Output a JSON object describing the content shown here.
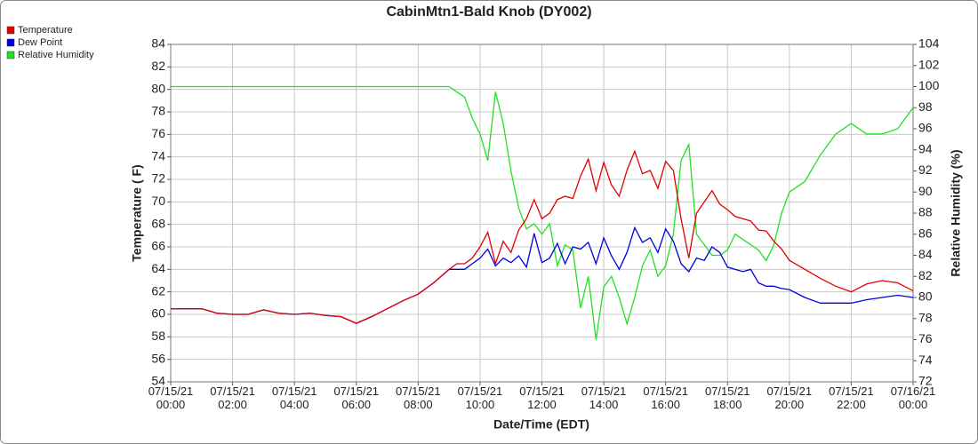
{
  "chart_data": {
    "type": "line",
    "title": "CabinMtn1-Bald Knob (DY002)",
    "x_label": "Date/Time (EDT)",
    "y_label": "Temperature ( F)",
    "y2_label": "Relative Humidity (%)",
    "legend": "top-left",
    "grid": true,
    "xlim": [
      0,
      24
    ],
    "xticks": [
      {
        "value": 0,
        "label": "07/15/21 00:00"
      },
      {
        "value": 2,
        "label": "07/15/21 02:00"
      },
      {
        "value": 4,
        "label": "07/15/21 04:00"
      },
      {
        "value": 6,
        "label": "07/15/21 06:00"
      },
      {
        "value": 8,
        "label": "07/15/21 08:00"
      },
      {
        "value": 10,
        "label": "07/15/21 10:00"
      },
      {
        "value": 12,
        "label": "07/15/21 12:00"
      },
      {
        "value": 14,
        "label": "07/15/21 14:00"
      },
      {
        "value": 16,
        "label": "07/15/21 16:00"
      },
      {
        "value": 18,
        "label": "07/15/21 18:00"
      },
      {
        "value": 20,
        "label": "07/15/21 20:00"
      },
      {
        "value": 22,
        "label": "07/15/21 22:00"
      },
      {
        "value": 24,
        "label": "07/16/21 00:00"
      }
    ],
    "ylim": [
      54,
      84
    ],
    "yticks": [
      54,
      56,
      58,
      60,
      62,
      64,
      66,
      68,
      70,
      72,
      74,
      76,
      78,
      80,
      82,
      84
    ],
    "y2lim": [
      72,
      104
    ],
    "y2ticks": [
      72,
      74,
      76,
      78,
      80,
      82,
      84,
      86,
      88,
      90,
      92,
      94,
      96,
      98,
      100,
      102,
      104
    ],
    "x": [
      0,
      0.5,
      1,
      1.5,
      2,
      2.5,
      3,
      3.5,
      4,
      4.5,
      5,
      5.5,
      6,
      6.5,
      7,
      7.5,
      8,
      8.5,
      9,
      9.25,
      9.5,
      9.75,
      10,
      10.25,
      10.5,
      10.75,
      11,
      11.25,
      11.5,
      11.75,
      12,
      12.25,
      12.5,
      12.75,
      13,
      13.25,
      13.5,
      13.75,
      14,
      14.25,
      14.5,
      14.75,
      15,
      15.25,
      15.5,
      15.75,
      16,
      16.25,
      16.5,
      16.75,
      17,
      17.25,
      17.5,
      17.75,
      18,
      18.25,
      18.5,
      18.75,
      19,
      19.25,
      19.5,
      19.75,
      20,
      20.5,
      21,
      21.5,
      22,
      22.5,
      23,
      23.5,
      24
    ],
    "series": [
      {
        "name": "Temperature",
        "color": "#e00000",
        "values": [
          60.5,
          60.5,
          60.5,
          60.1,
          60.0,
          60.0,
          60.4,
          60.1,
          60.0,
          60.1,
          59.9,
          59.8,
          59.2,
          59.8,
          60.5,
          61.2,
          61.8,
          62.8,
          64.0,
          64.5,
          64.5,
          65.0,
          66.0,
          67.3,
          64.5,
          66.5,
          65.5,
          67.5,
          68.5,
          70.2,
          68.5,
          69.0,
          70.2,
          70.5,
          70.3,
          72.3,
          73.8,
          71.0,
          73.5,
          71.5,
          70.5,
          72.8,
          74.5,
          72.5,
          72.8,
          71.2,
          73.6,
          72.8,
          68.5,
          65.0,
          69.0,
          70.0,
          71.0,
          69.8,
          69.3,
          68.7,
          68.5,
          68.3,
          67.5,
          67.4,
          66.5,
          65.8,
          64.8,
          64.0,
          63.2,
          62.5,
          62.0,
          62.7,
          63.0,
          62.8,
          62.1
        ]
      },
      {
        "name": "Dew Point",
        "color": "#0000e0",
        "values": [
          60.5,
          60.5,
          60.5,
          60.1,
          60.0,
          60.0,
          60.4,
          60.1,
          60.0,
          60.1,
          59.9,
          59.8,
          59.2,
          59.8,
          60.5,
          61.2,
          61.8,
          62.8,
          64.0,
          64.0,
          64.0,
          64.5,
          65.0,
          65.8,
          64.3,
          65.0,
          64.6,
          65.2,
          64.2,
          67.2,
          64.6,
          65.0,
          66.3,
          64.5,
          66.0,
          65.8,
          66.4,
          64.5,
          66.8,
          65.2,
          64.0,
          65.5,
          67.7,
          66.4,
          66.8,
          65.5,
          67.6,
          66.5,
          64.5,
          63.8,
          65.0,
          64.8,
          66.0,
          65.5,
          64.2,
          64.0,
          63.8,
          64.0,
          62.8,
          62.5,
          62.5,
          62.3,
          62.2,
          61.5,
          61.0,
          61.0,
          61.0,
          61.3,
          61.5,
          61.7,
          61.5
        ]
      },
      {
        "name": "Relative Humidity",
        "color": "#22e022",
        "axis": "y2",
        "values": [
          100,
          100,
          100,
          100,
          100,
          100,
          100,
          100,
          100,
          100,
          100,
          100,
          100,
          100,
          100,
          100,
          100,
          100,
          100,
          99.5,
          99,
          97,
          95.5,
          93,
          99.5,
          96.5,
          92,
          88.5,
          86.5,
          87,
          86,
          87,
          83,
          85,
          84.5,
          79,
          82,
          76,
          81,
          82,
          80,
          77.5,
          80,
          83,
          84.5,
          82,
          83,
          86,
          93,
          94.5,
          86,
          85,
          84,
          84,
          84.5,
          86,
          85.5,
          85,
          84.5,
          83.5,
          85,
          88,
          90,
          91,
          93.5,
          95.5,
          96.5,
          95.5,
          95.5,
          96,
          98
        ]
      }
    ]
  }
}
